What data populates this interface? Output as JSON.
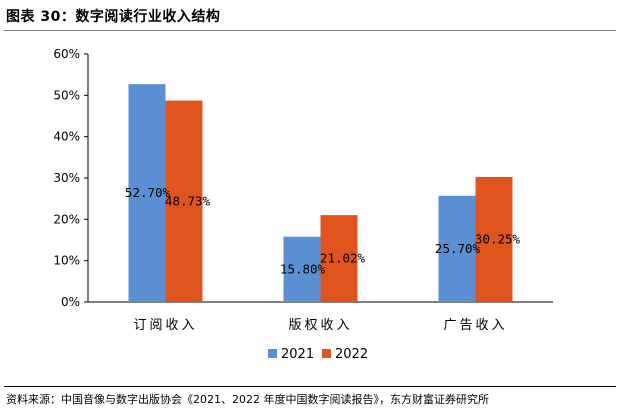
{
  "caption": "图表 30：数字阅读行业收入结构",
  "source": "资料来源：中国音像与数字出版协会《2021、2022 年度中国数字阅读报告》，东方财富证券研究所",
  "chart_data": {
    "type": "bar",
    "title": "",
    "xlabel": "",
    "ylabel": "",
    "categories": [
      "订阅收入",
      "版权收入",
      "广告收入"
    ],
    "series": [
      {
        "name": "2021",
        "color": "#5b8fd4",
        "values": [
          52.7,
          15.8,
          25.7
        ],
        "labels": [
          "52.70%",
          "15.80%",
          "25.70%"
        ]
      },
      {
        "name": "2022",
        "color": "#e0541e",
        "values": [
          48.73,
          21.02,
          30.25
        ],
        "labels": [
          "48.73%",
          "21.02%",
          "30.25%"
        ]
      }
    ],
    "ylim": [
      0,
      60
    ],
    "yticks": [
      0,
      10,
      20,
      30,
      40,
      50,
      60
    ],
    "ytick_labels": [
      "0%",
      "10%",
      "20%",
      "30%",
      "40%",
      "50%",
      "60%"
    ],
    "grid": false,
    "legend": "bottom"
  }
}
